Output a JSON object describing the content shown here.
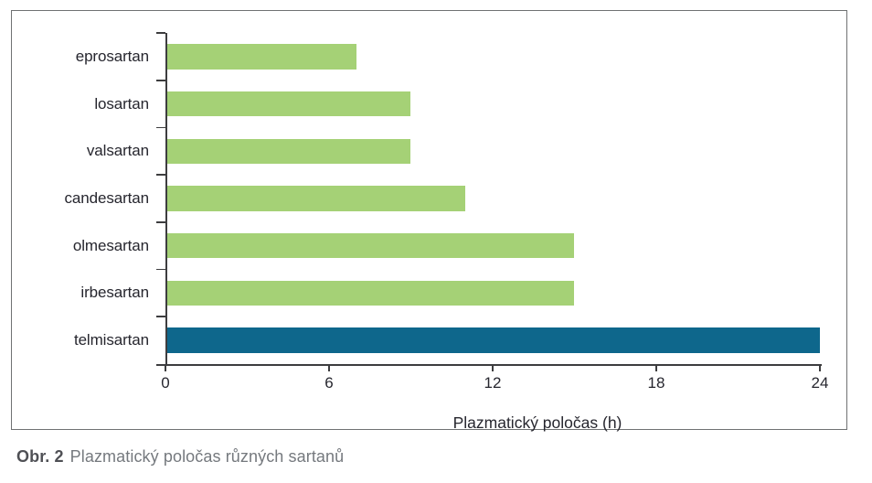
{
  "figure": {
    "caption_label": "Obr. 2",
    "caption_text": "Plazmatický poločas různých sartanů"
  },
  "chart_data": {
    "type": "bar",
    "orientation": "horizontal",
    "title": "",
    "xlabel": "Plazmatický poločas (h)",
    "ylabel": "",
    "categories": [
      "eprosartan",
      "losartan",
      "valsartan",
      "candesartan",
      "olmesartan",
      "irbesartan",
      "telmisartan"
    ],
    "values": [
      7,
      9,
      9,
      11,
      15,
      15,
      24
    ],
    "bar_colors": [
      "#a5d176",
      "#a5d176",
      "#a5d176",
      "#a5d176",
      "#a5d176",
      "#a5d176",
      "#0e678c"
    ],
    "highlight_category": "telmisartan",
    "x_ticks": [
      0,
      6,
      12,
      18,
      24
    ],
    "xlim": [
      0,
      24
    ],
    "grid": false,
    "legend": "none"
  },
  "colors": {
    "bar_green": "#a5d176",
    "bar_blue": "#0e678c",
    "axis": "#3d3d3f",
    "frame_border": "#6f7173",
    "label_text": "#26262e",
    "caption_label_text": "#4f5055",
    "caption_text": "#75797e"
  }
}
